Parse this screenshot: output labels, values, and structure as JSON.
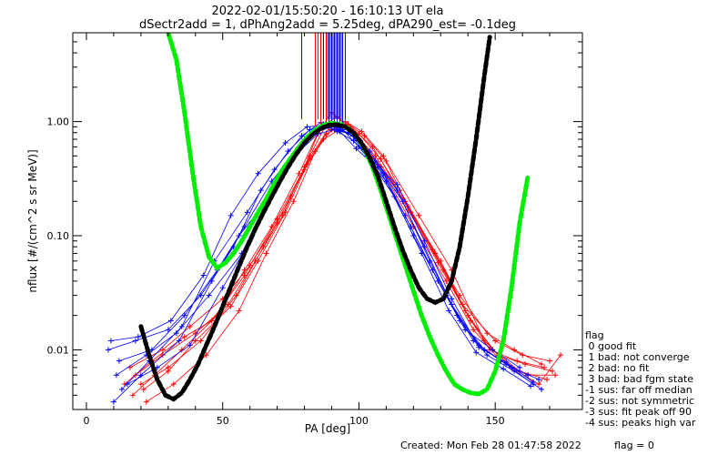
{
  "colors": {
    "red_series": "#ff0000",
    "blue_series": "#0000ff",
    "fit_curve": "#00ee00",
    "model_curve": "#000000",
    "axis": "#000000",
    "background": "#ffffff"
  },
  "footer": {
    "created": "Created: Mon Feb 28 01:47:58 2022",
    "flag": "flag = 0"
  },
  "legend": {
    "title": "flag",
    "items": [
      " 0 good fit",
      " 1 bad: not converge",
      " 2 bad: no fit",
      " 3 bad: bad fgm state",
      "-1 sus: far off median",
      "-2 sus: not symmetric",
      "-3 sus: fit peak off 90",
      "-4 sus: peaks high var"
    ]
  },
  "chart_data": {
    "type": "line",
    "title": "2022-02-01/15:50:20 - 16:10:13 UT ela",
    "subtitle": "dSectr2add = 1, dPhAng2add = 5.25deg, dPA290_est=  -0.1deg",
    "xlabel": "PA [deg]",
    "ylabel": "nflux [#/(cm^2 s sr MeV)]",
    "xlim": [
      -5,
      182
    ],
    "ylim": [
      0.003,
      6
    ],
    "yscale": "log",
    "xticks": [
      "0",
      "50",
      "100",
      "150"
    ],
    "yticks": [
      "0.01",
      "0.10",
      "1.00"
    ],
    "series": [
      {
        "color": "red",
        "marker": "+",
        "lines": [
          {
            "x": [
              18,
              28,
              40,
              52,
              62,
              72,
              80,
              86,
              92,
              98,
              106,
              118,
              130,
              140,
              148,
              158,
              168
            ],
            "y": [
              0.006,
              0.009,
              0.014,
              0.025,
              0.06,
              0.15,
              0.4,
              0.9,
              1.1,
              0.8,
              0.5,
              0.18,
              0.06,
              0.02,
              0.01,
              0.008,
              0.007
            ]
          },
          {
            "x": [
              20,
              30,
              42,
              55,
              65,
              75,
              82,
              88,
              94,
              100,
              108,
              120,
              132,
              142,
              152,
              162,
              172
            ],
            "y": [
              0.005,
              0.007,
              0.012,
              0.03,
              0.08,
              0.22,
              0.5,
              0.95,
              0.9,
              0.7,
              0.4,
              0.12,
              0.04,
              0.015,
              0.008,
              0.006,
              0.006
            ]
          },
          {
            "x": [
              17,
              25,
              35,
              48,
              58,
              68,
              78,
              85,
              90,
              97,
              105,
              115,
              128,
              138,
              150,
              160,
              170
            ],
            "y": [
              0.004,
              0.006,
              0.01,
              0.02,
              0.05,
              0.12,
              0.35,
              0.8,
              1.2,
              0.9,
              0.6,
              0.25,
              0.07,
              0.025,
              0.012,
              0.009,
              0.008
            ]
          },
          {
            "x": [
              22,
              32,
              44,
              56,
              66,
              76,
              84,
              90,
              96,
              102,
              110,
              122,
              134,
              146,
              156,
              166,
              174
            ],
            "y": [
              0.0035,
              0.005,
              0.009,
              0.022,
              0.07,
              0.2,
              0.55,
              0.85,
              0.95,
              0.75,
              0.45,
              0.15,
              0.05,
              0.012,
              0.007,
              0.005,
              0.009
            ]
          },
          {
            "x": [
              16,
              28,
              38,
              50,
              60,
              70,
              80,
              87,
              93,
              99,
              107,
              117,
              127,
              137,
              147,
              157,
              167
            ],
            "y": [
              0.007,
              0.01,
              0.016,
              0.028,
              0.055,
              0.13,
              0.38,
              0.7,
              0.85,
              0.72,
              0.42,
              0.2,
              0.075,
              0.03,
              0.014,
              0.01,
              0.0075
            ]
          },
          {
            "x": [
              21,
              30,
              40,
              53,
              63,
              73,
              81,
              88,
              94,
              100,
              108,
              118,
              129,
              139,
              149,
              159,
              169
            ],
            "y": [
              0.0045,
              0.0065,
              0.012,
              0.024,
              0.06,
              0.16,
              0.42,
              0.78,
              0.92,
              0.78,
              0.47,
              0.17,
              0.058,
              0.022,
              0.01,
              0.0065,
              0.0055
            ]
          },
          {
            "x": [
              14,
              24,
              36,
              46,
              58,
              70,
              82,
              89,
              95,
              101,
              109,
              119,
              131,
              141,
              151,
              161,
              171
            ],
            "y": [
              0.005,
              0.008,
              0.013,
              0.018,
              0.045,
              0.14,
              0.48,
              0.88,
              1.0,
              0.82,
              0.5,
              0.16,
              0.05,
              0.018,
              0.009,
              0.0075,
              0.0065
            ]
          }
        ]
      },
      {
        "color": "blue",
        "marker": "+",
        "lines": [
          {
            "x": [
              8,
              18,
              30,
              42,
              54,
              64,
              74,
              82,
              88,
              94,
              100,
              110,
              120,
              132,
              142,
              152,
              162
            ],
            "y": [
              0.01,
              0.012,
              0.015,
              0.03,
              0.08,
              0.25,
              0.55,
              0.85,
              0.95,
              0.85,
              0.6,
              0.3,
              0.1,
              0.03,
              0.012,
              0.008,
              0.006
            ]
          },
          {
            "x": [
              12,
              24,
              36,
              48,
              58,
              68,
              78,
              86,
              92,
              98,
              106,
              116,
              126,
              136,
              146,
              156,
              166
            ],
            "y": [
              0.008,
              0.01,
              0.02,
              0.05,
              0.12,
              0.3,
              0.6,
              0.9,
              0.85,
              0.75,
              0.45,
              0.2,
              0.06,
              0.02,
              0.01,
              0.007,
              0.0055
            ]
          },
          {
            "x": [
              10,
              20,
              34,
              46,
              56,
              66,
              76,
              84,
              90,
              96,
              104,
              114,
              124,
              134,
              144,
              154,
              164
            ],
            "y": [
              0.0035,
              0.006,
              0.012,
              0.04,
              0.1,
              0.2,
              0.5,
              0.8,
              0.9,
              0.8,
              0.55,
              0.25,
              0.08,
              0.025,
              0.011,
              0.0075,
              0.005
            ]
          },
          {
            "x": [
              15,
              26,
              38,
              50,
              60,
              70,
              80,
              87,
              93,
              99,
              107,
              117,
              127,
              137,
              147,
              157,
              167
            ],
            "y": [
              0.005,
              0.007,
              0.011,
              0.035,
              0.09,
              0.28,
              0.7,
              0.95,
              0.88,
              0.7,
              0.4,
              0.15,
              0.05,
              0.018,
              0.009,
              0.0065,
              0.0045
            ]
          },
          {
            "x": [
              9,
              19,
              31,
              43,
              53,
              63,
              73,
              81,
              87,
              93,
              99,
              109,
              119,
              129,
              139,
              149,
              159
            ],
            "y": [
              0.012,
              0.013,
              0.018,
              0.045,
              0.15,
              0.35,
              0.65,
              0.9,
              0.92,
              0.82,
              0.58,
              0.35,
              0.12,
              0.04,
              0.015,
              0.01,
              0.007
            ]
          },
          {
            "x": [
              11,
              22,
              33,
              45,
              57,
              67,
              77,
              85,
              91,
              97,
              103,
              113,
              123,
              133,
              143,
              153,
              163
            ],
            "y": [
              0.006,
              0.009,
              0.014,
              0.03,
              0.07,
              0.22,
              0.52,
              0.78,
              0.85,
              0.78,
              0.5,
              0.22,
              0.07,
              0.022,
              0.0095,
              0.0068,
              0.0048
            ]
          },
          {
            "x": [
              13,
              23,
              35,
              47,
              59,
              69,
              79,
              86,
              92,
              98,
              104,
              114,
              124,
              134,
              144,
              154,
              164
            ],
            "y": [
              0.0045,
              0.008,
              0.016,
              0.06,
              0.16,
              0.38,
              0.75,
              0.98,
              0.82,
              0.68,
              0.48,
              0.28,
              0.09,
              0.028,
              0.0105,
              0.0078,
              0.0052
            ]
          }
        ]
      },
      {
        "name": "",
        "color": "green",
        "style": "dashed",
        "x": [
          30,
          33,
          36,
          39,
          42,
          45,
          48,
          51,
          54,
          57,
          60,
          63,
          66,
          69,
          72,
          75,
          78,
          81,
          84,
          87,
          90,
          93,
          96,
          99,
          102,
          105,
          108,
          111,
          114,
          117,
          120,
          123,
          126,
          129,
          132,
          135,
          138,
          141,
          144,
          147,
          150,
          153,
          156,
          159,
          162
        ],
        "y": [
          6,
          3.5,
          1.2,
          0.35,
          0.12,
          0.065,
          0.052,
          0.058,
          0.07,
          0.09,
          0.12,
          0.16,
          0.21,
          0.29,
          0.38,
          0.48,
          0.6,
          0.73,
          0.85,
          0.93,
          0.97,
          0.95,
          0.88,
          0.75,
          0.58,
          0.4,
          0.25,
          0.15,
          0.09,
          0.055,
          0.033,
          0.02,
          0.013,
          0.009,
          0.0065,
          0.005,
          0.0045,
          0.0042,
          0.0041,
          0.0045,
          0.0065,
          0.012,
          0.035,
          0.13,
          0.33
        ]
      },
      {
        "name": "",
        "color": "black",
        "style": "dashed",
        "x": [
          20,
          23,
          26,
          29,
          32,
          35,
          38,
          41,
          44,
          47,
          50,
          53,
          56,
          59,
          62,
          65,
          68,
          71,
          74,
          77,
          80,
          83,
          86,
          89,
          92,
          95,
          98,
          101,
          104,
          107,
          110,
          113,
          116,
          119,
          122,
          125,
          128,
          131,
          134,
          137,
          140,
          143,
          146,
          148
        ],
        "y": [
          0.016,
          0.009,
          0.0055,
          0.004,
          0.0037,
          0.0042,
          0.0055,
          0.0075,
          0.011,
          0.016,
          0.024,
          0.036,
          0.054,
          0.08,
          0.115,
          0.16,
          0.22,
          0.3,
          0.4,
          0.52,
          0.65,
          0.77,
          0.87,
          0.93,
          0.94,
          0.9,
          0.8,
          0.65,
          0.48,
          0.33,
          0.2,
          0.12,
          0.075,
          0.05,
          0.035,
          0.028,
          0.026,
          0.028,
          0.04,
          0.08,
          0.22,
          0.7,
          2.5,
          5.5
        ]
      }
    ]
  }
}
